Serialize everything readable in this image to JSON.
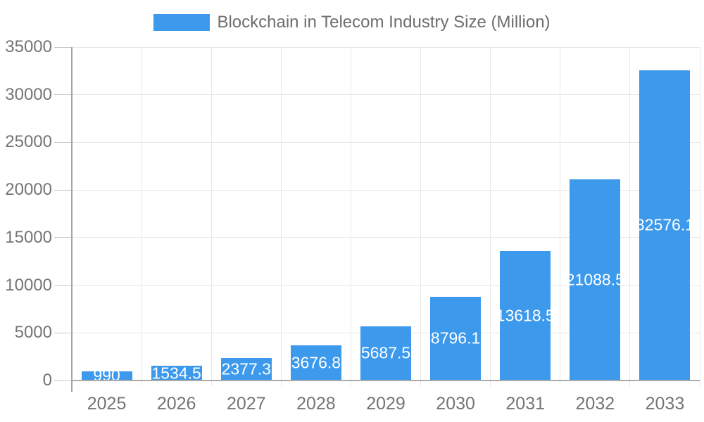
{
  "legend": {
    "position": "top",
    "label": "Blockchain in Telecom Industry Size (Million)",
    "swatch_color": "#3c99ec"
  },
  "chart_data": {
    "type": "bar",
    "title": "Blockchain in Telecom Industry Size (Million)",
    "categories": [
      "2025",
      "2026",
      "2027",
      "2028",
      "2029",
      "2030",
      "2031",
      "2032",
      "2033"
    ],
    "values": [
      990,
      1534.5,
      2377.3,
      3676.8,
      5687.5,
      8796.1,
      13618.5,
      21088.5,
      32576.1
    ],
    "bar_labels": [
      "990",
      "1534.5",
      "2377.3",
      "3676.8",
      "5687.5",
      "8796.1",
      "13618.5",
      "21088.5",
      "32576.1"
    ],
    "xlabel": "",
    "ylabel": "",
    "ylim": [
      0,
      35000
    ],
    "y_ticks": [
      0,
      5000,
      10000,
      15000,
      20000,
      25000,
      30000,
      35000
    ],
    "y_tick_labels": [
      "0",
      "5000",
      "10000",
      "15000",
      "20000",
      "25000",
      "30000",
      "35000"
    ],
    "grid": true,
    "legend_position": "top",
    "colors": {
      "bar": "#3c99ec",
      "bar_value_text": "#ffffff",
      "axis_text": "#757575",
      "legend_text": "#6e6e6e",
      "gridline": "#e8e8e8",
      "axis_line": "#a5a5a5",
      "baseline": "#ababab",
      "tick_mark": "#c9c9c9"
    }
  }
}
